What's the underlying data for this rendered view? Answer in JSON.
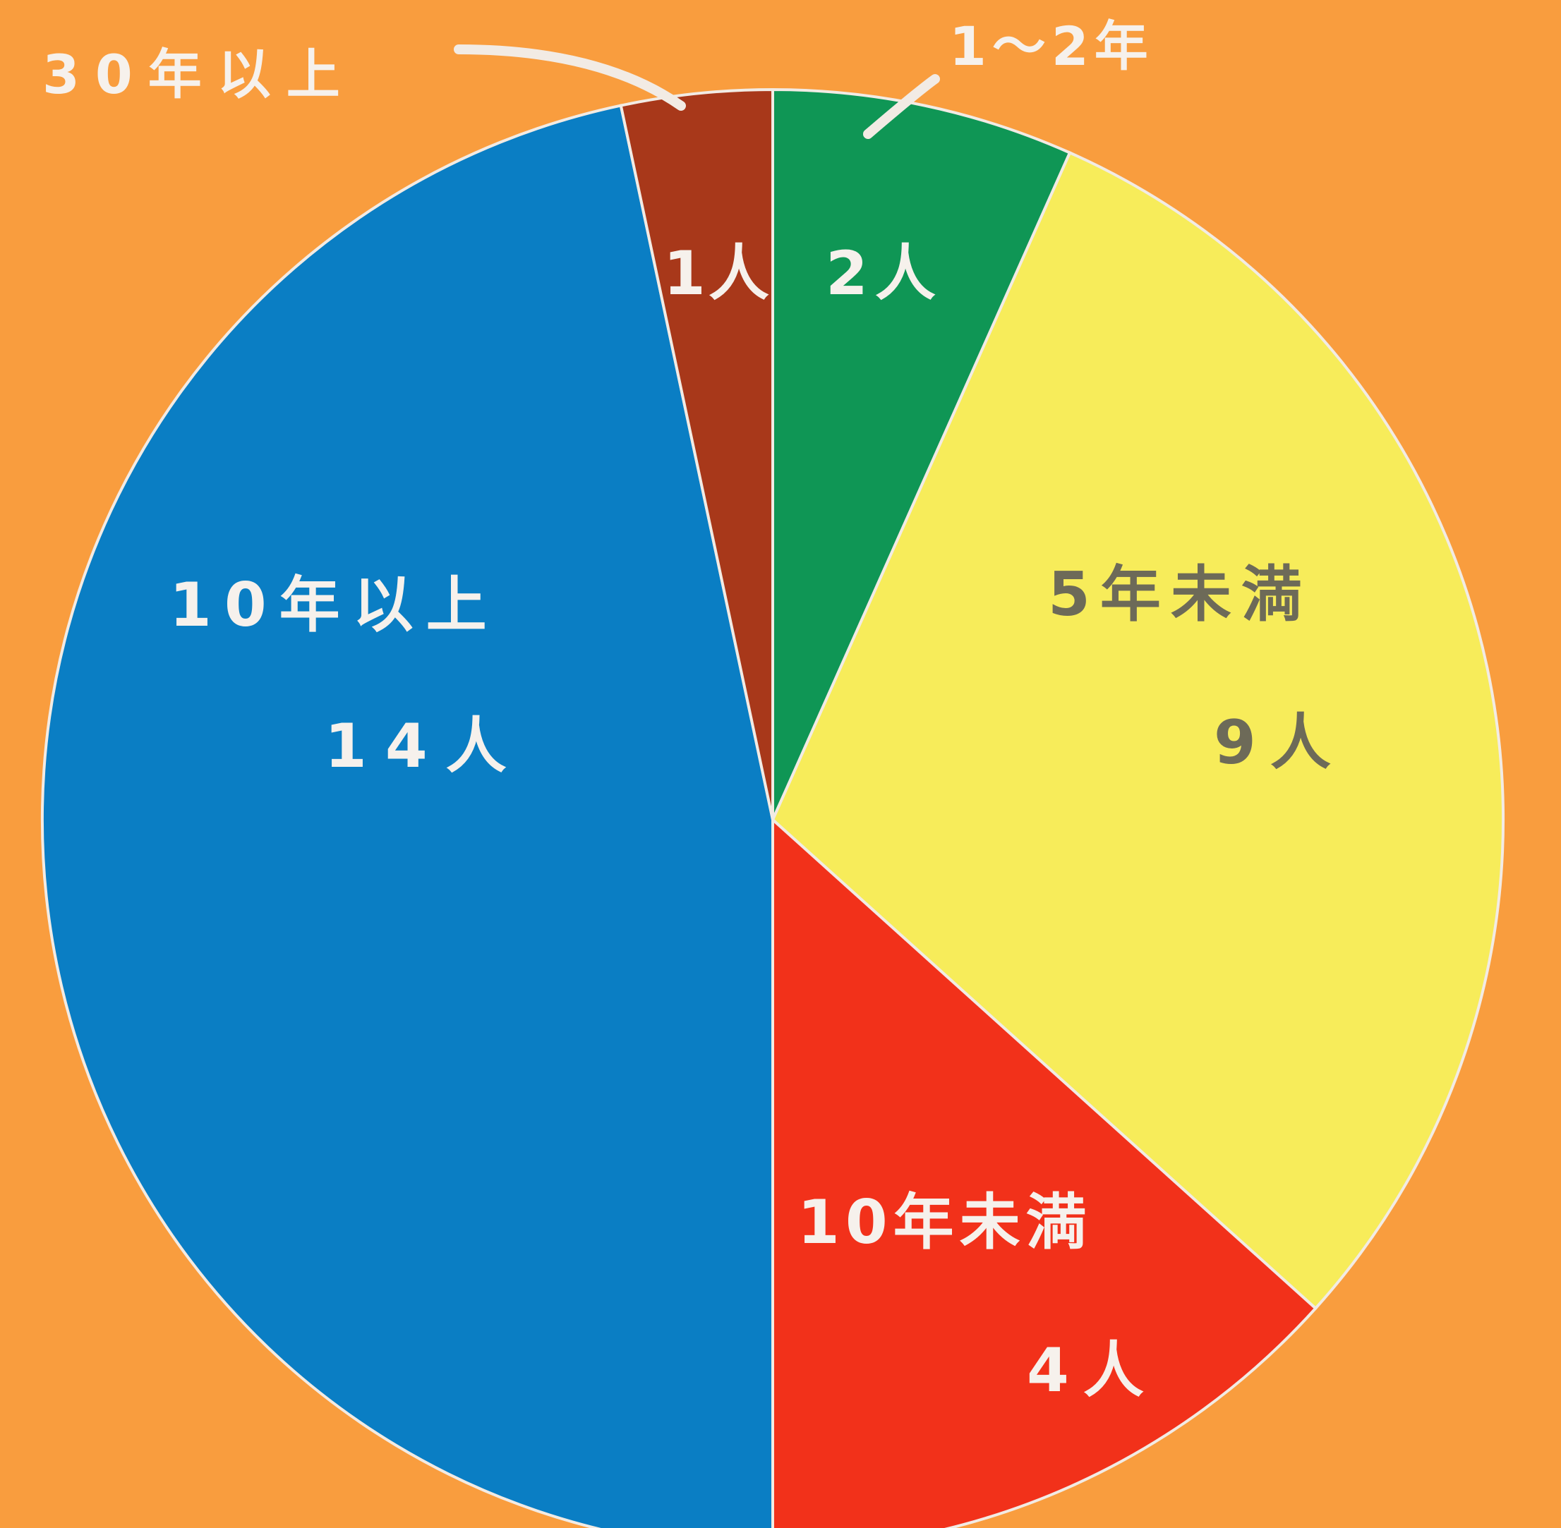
{
  "chart_data": {
    "type": "pie",
    "unit": "人",
    "start_angle_deg": 0,
    "direction": "clockwise",
    "colors": {
      "background": "#f99d3e",
      "outline": "#f2ebe4",
      "label_light": "#f6f1ec",
      "label_dark": "#6d6a58"
    },
    "slices": [
      {
        "category": "1～2年",
        "value": 2,
        "count_label": "2人",
        "color": "#0f9655"
      },
      {
        "category": "5年未満",
        "value": 9,
        "count_label": "9人",
        "color": "#f7ec5a"
      },
      {
        "category": "10年未満",
        "value": 4,
        "count_label": "4人",
        "color": "#f2311a"
      },
      {
        "category": "10年以上",
        "value": 14,
        "count_label": "14人",
        "color": "#0a7ec4"
      },
      {
        "category": "30年以上",
        "value": 1,
        "count_label": "1人",
        "color": "#a8381a"
      }
    ]
  }
}
